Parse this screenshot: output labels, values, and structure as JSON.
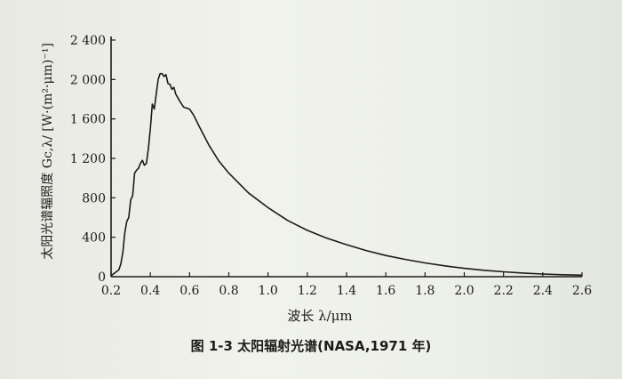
{
  "caption": "图 1-3 太阳辐射光谱(NASA,1971 年)",
  "chart_data": {
    "type": "line",
    "title": "",
    "xlabel": "波长 λ/μm",
    "ylabel": "太阳光谱辐照度 Gc,λ/ [W·(m²·μm)⁻¹]",
    "xlim": [
      0.2,
      2.6
    ],
    "ylim": [
      0,
      2400
    ],
    "xticks": [
      "0.2",
      "0.4",
      "0.6",
      "0.8",
      "1.0",
      "1.2",
      "1.4",
      "1.6",
      "1.8",
      "2.0",
      "2.2",
      "2.4",
      "2.6"
    ],
    "yticks": [
      "0",
      "400",
      "800",
      "1 200",
      "1 600",
      "2 000",
      "2 400"
    ],
    "grid": false,
    "series": [
      {
        "x": [
          0.2,
          0.22,
          0.24,
          0.25,
          0.26,
          0.27,
          0.28,
          0.29,
          0.3,
          0.31,
          0.32,
          0.33,
          0.34,
          0.35,
          0.36,
          0.37,
          0.38,
          0.39,
          0.4,
          0.41,
          0.42,
          0.43,
          0.44,
          0.45,
          0.46,
          0.47,
          0.48,
          0.49,
          0.5,
          0.51,
          0.52,
          0.53,
          0.55,
          0.57,
          0.6,
          0.62,
          0.65,
          0.7,
          0.75,
          0.8,
          0.9,
          1.0,
          1.1,
          1.2,
          1.3,
          1.4,
          1.5,
          1.6,
          1.7,
          1.8,
          1.9,
          2.0,
          2.1,
          2.2,
          2.3,
          2.4,
          2.5,
          2.6
        ],
        "y": [
          10,
          40,
          70,
          130,
          250,
          450,
          560,
          600,
          780,
          820,
          1050,
          1080,
          1100,
          1150,
          1180,
          1130,
          1150,
          1300,
          1500,
          1750,
          1700,
          1850,
          2000,
          2060,
          2060,
          2030,
          2050,
          1960,
          1950,
          1900,
          1920,
          1850,
          1780,
          1720,
          1700,
          1640,
          1520,
          1330,
          1170,
          1050,
          850,
          700,
          570,
          470,
          390,
          325,
          265,
          215,
          175,
          140,
          110,
          85,
          65,
          50,
          37,
          27,
          20,
          15
        ]
      }
    ]
  }
}
